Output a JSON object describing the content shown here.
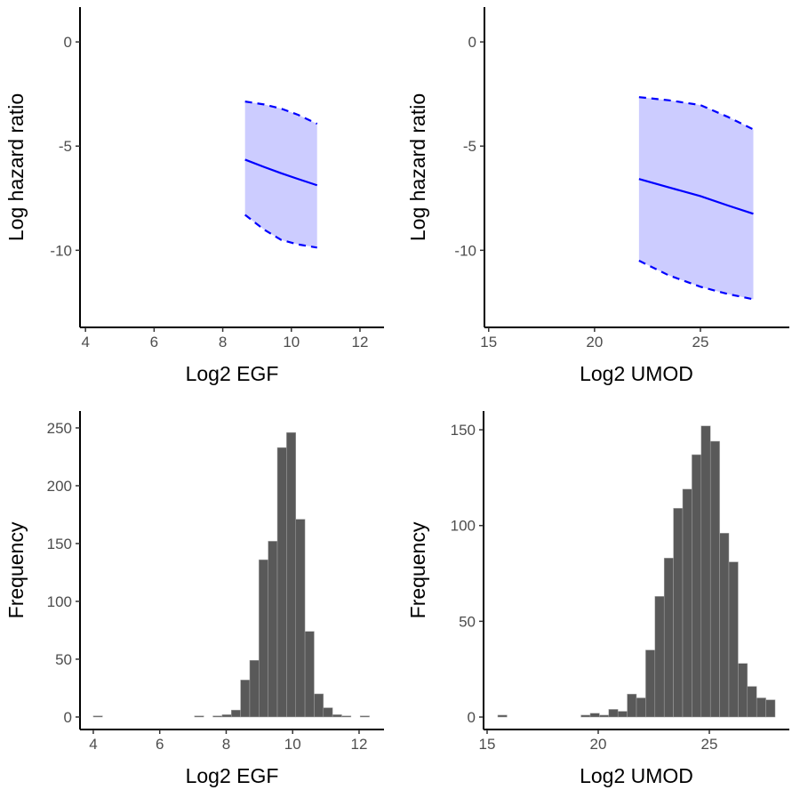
{
  "chart_data": [
    {
      "type": "line",
      "xlabel": "Log2 EGF",
      "ylabel": "Log hazard ratio",
      "xlim": [
        3.84,
        12.7
      ],
      "ylim": [
        -13.7,
        1.67
      ],
      "xticks": [
        4,
        6,
        8,
        10,
        12
      ],
      "yticks": [
        0,
        -5,
        -10
      ],
      "grid": false,
      "colors": {
        "line": "#0000ff",
        "band": "#ccccff"
      },
      "series": {
        "x": [
          8.65,
          9.2,
          9.7,
          10.2,
          10.75
        ],
        "estimate": [
          -5.65,
          -6.0,
          -6.3,
          -6.58,
          -6.88
        ],
        "upper": [
          -2.86,
          -3.0,
          -3.2,
          -3.5,
          -3.93
        ],
        "lower": [
          -8.3,
          -9.0,
          -9.5,
          -9.72,
          -9.87
        ]
      }
    },
    {
      "type": "line",
      "xlabel": "Log2 UMOD",
      "ylabel": "Log hazard ratio",
      "xlim": [
        14.8,
        29.2
      ],
      "ylim": [
        -13.7,
        1.67
      ],
      "xticks": [
        15,
        20,
        25
      ],
      "yticks": [
        0,
        -5,
        -10
      ],
      "grid": false,
      "colors": {
        "line": "#0000ff",
        "band": "#ccccff"
      },
      "series": {
        "x": [
          22.1,
          23.5,
          25.0,
          26.3,
          27.5
        ],
        "estimate": [
          -6.58,
          -6.98,
          -7.4,
          -7.85,
          -8.25
        ],
        "upper": [
          -2.65,
          -2.8,
          -3.03,
          -3.6,
          -4.2
        ],
        "lower": [
          -10.5,
          -11.2,
          -11.75,
          -12.1,
          -12.35
        ]
      }
    },
    {
      "type": "bar",
      "subtype": "histogram",
      "xlabel": "Log2 EGF",
      "ylabel": "Frequency",
      "xlim": [
        3.6,
        12.75
      ],
      "ylim": [
        -10.8,
        264.6
      ],
      "xticks": [
        4,
        6,
        8,
        10,
        12
      ],
      "yticks": [
        0,
        50,
        100,
        150,
        200,
        250
      ],
      "grid": false,
      "colors": {
        "bar": "#595959"
      },
      "bin_start": 4.0,
      "bin_width": 0.277,
      "counts": [
        1,
        0,
        0,
        0,
        0,
        0,
        0,
        0,
        0,
        0,
        0,
        1,
        0,
        1,
        2,
        6,
        32,
        49,
        136,
        152,
        233,
        246,
        171,
        74,
        20,
        8,
        2,
        1,
        0,
        1
      ]
    },
    {
      "type": "bar",
      "subtype": "histogram",
      "xlabel": "Log2 UMOD",
      "ylabel": "Frequency",
      "xlim": [
        14.84,
        28.6
      ],
      "ylim": [
        -6.5,
        159.8
      ],
      "xticks": [
        15,
        20,
        25
      ],
      "yticks": [
        0,
        50,
        100,
        150
      ],
      "grid": false,
      "colors": {
        "bar": "#595959"
      },
      "bin_start": 15.48,
      "bin_width": 0.416,
      "counts": [
        1,
        0,
        0,
        0,
        0,
        0,
        0,
        0,
        0,
        1,
        2,
        1,
        4,
        3,
        12,
        10,
        35,
        63,
        83,
        109,
        119,
        137,
        152,
        144,
        96,
        81,
        28,
        16,
        10,
        9
      ]
    }
  ]
}
